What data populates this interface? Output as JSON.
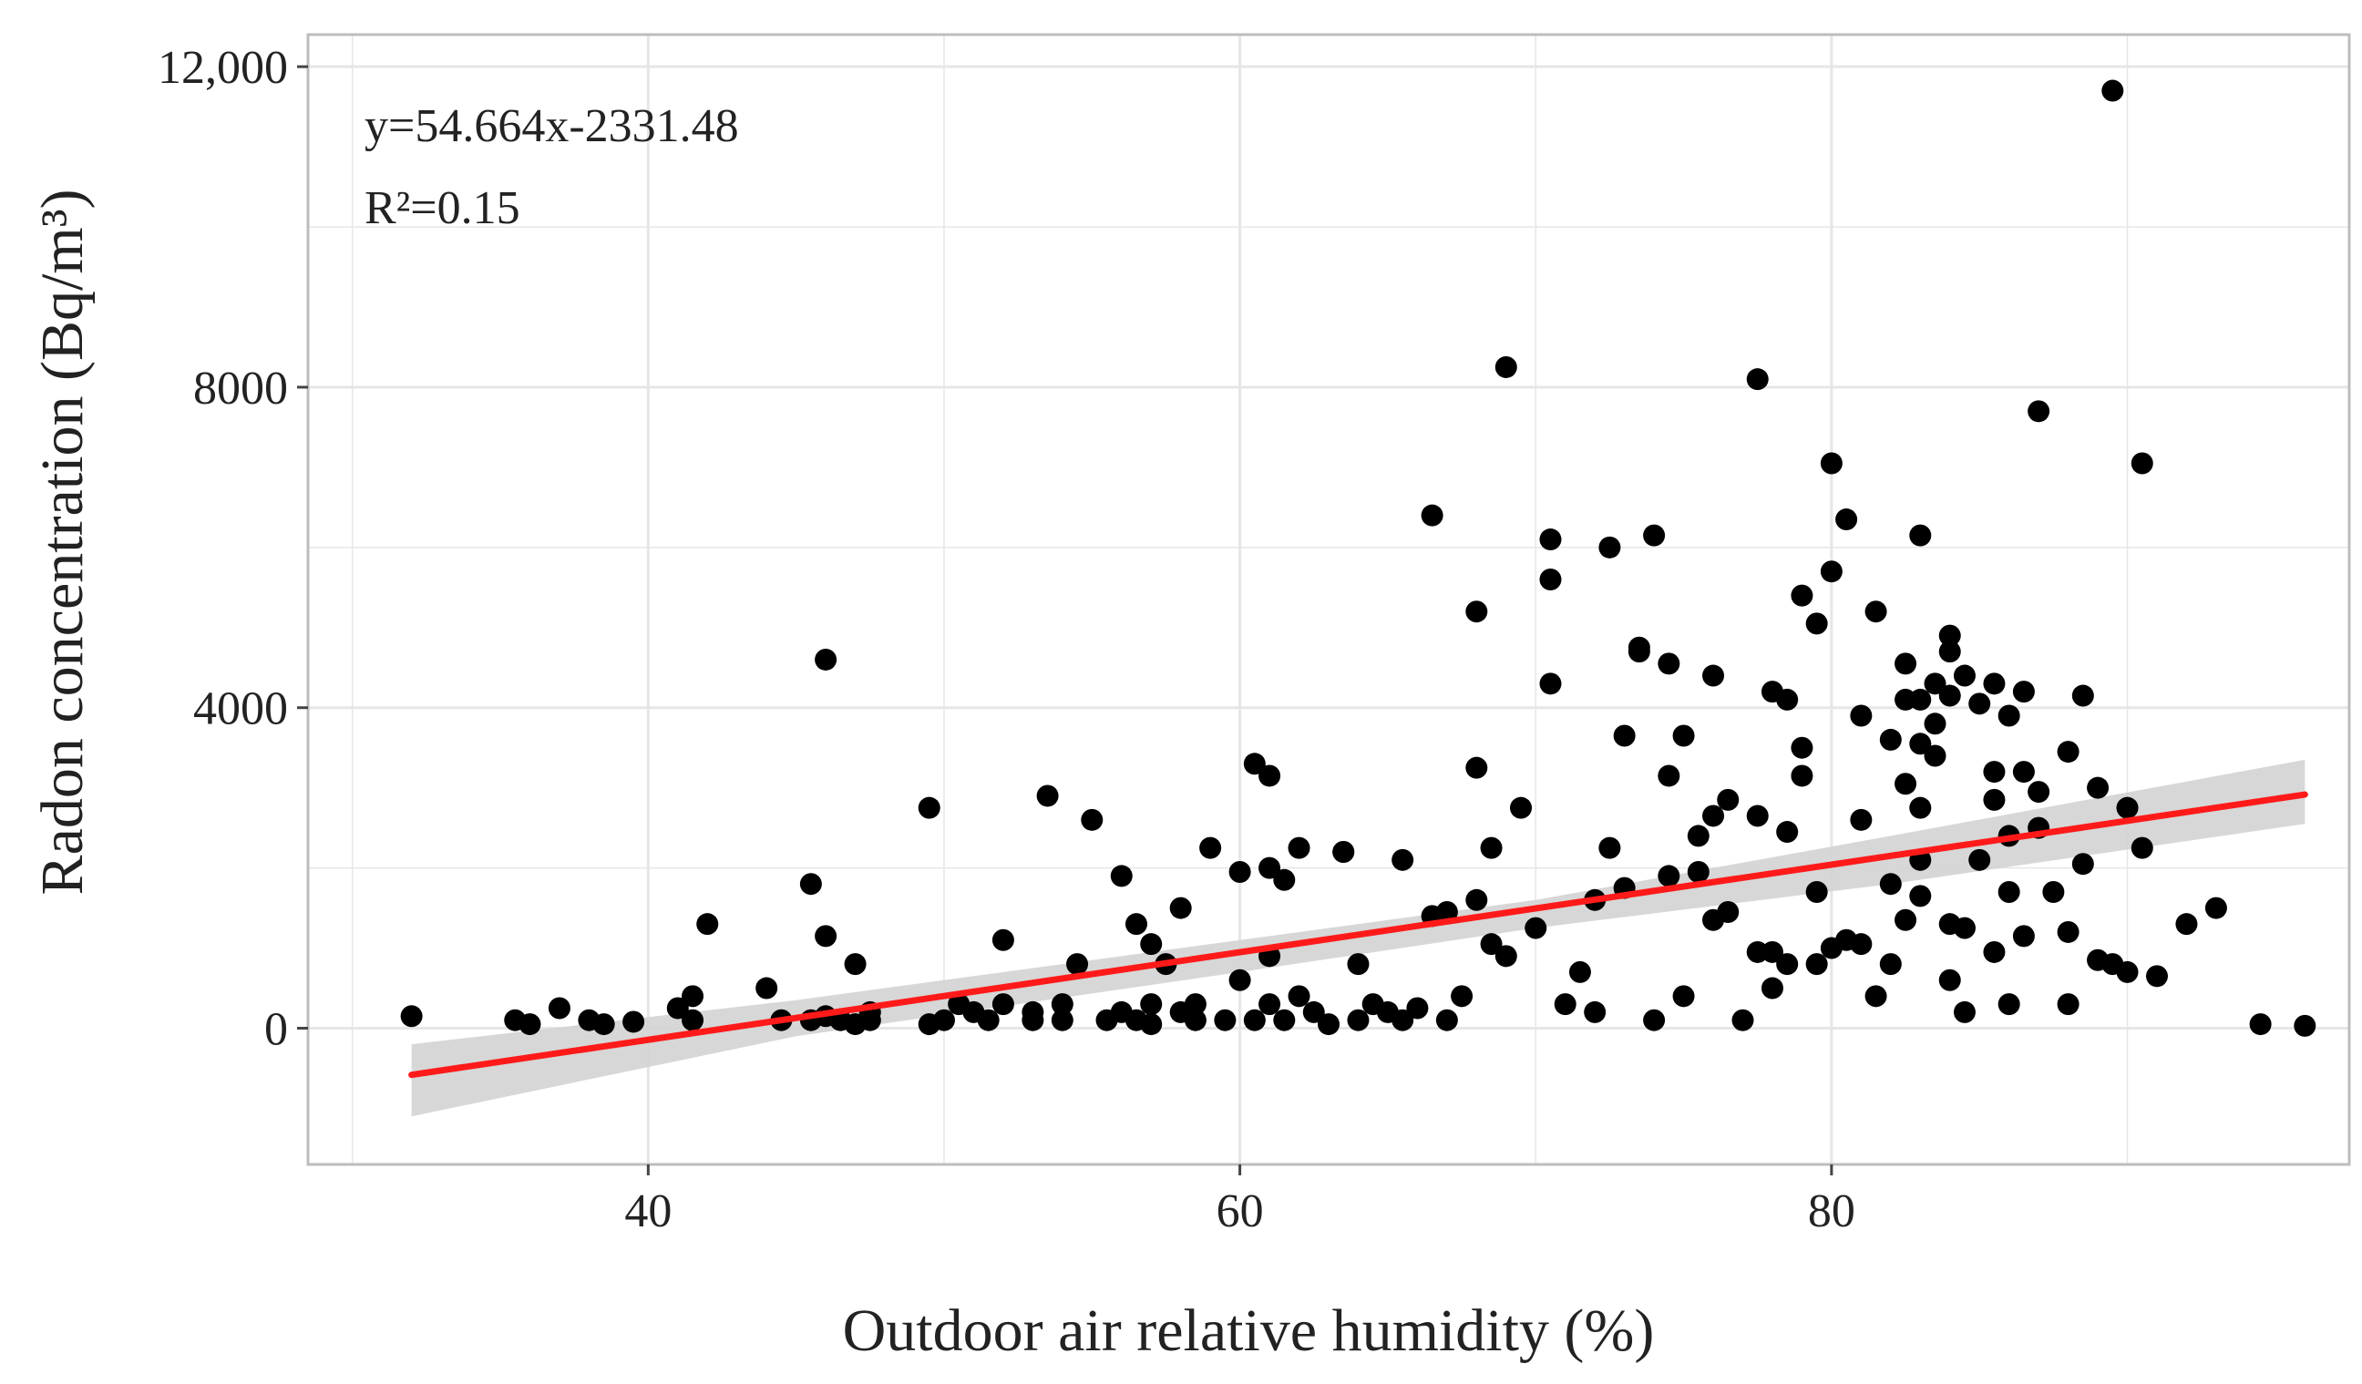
{
  "chart_data": {
    "type": "scatter",
    "xlabel": "Outdoor air relative humidity (%)",
    "ylabel": "Radon concentration (Bq/m³)",
    "xlim": [
      28.5,
      97.5
    ],
    "ylim": [
      -1700,
      12400
    ],
    "x_ticks": [
      {
        "value": 40,
        "label": "40"
      },
      {
        "value": 60,
        "label": "60"
      },
      {
        "value": 80,
        "label": "80"
      }
    ],
    "y_ticks": [
      {
        "value": 0,
        "label": "0"
      },
      {
        "value": 4000,
        "label": "4000"
      },
      {
        "value": 8000,
        "label": "8000"
      },
      {
        "value": 12000,
        "label": "12,000"
      }
    ],
    "grid": true,
    "annotations": [
      "y=54.664x-2331.48",
      "R²=0.15"
    ],
    "regression": {
      "slope": 54.664,
      "intercept": -2331.48,
      "x_range": [
        32,
        96
      ]
    },
    "confidence_band": [
      [
        32,
        -1100,
        -200
      ],
      [
        45,
        -100,
        350
      ],
      [
        60,
        700,
        1100
      ],
      [
        70,
        1250,
        1600
      ],
      [
        82,
        1800,
        2400
      ],
      [
        96,
        2550,
        3350
      ]
    ],
    "colors": {
      "points": "#000000",
      "line": "#ff1a1a",
      "band": "#d3d3d3",
      "grid": "#e6e6e6",
      "frame": "#bdbdbd"
    },
    "points": [
      [
        32,
        150
      ],
      [
        35.5,
        100
      ],
      [
        36,
        50
      ],
      [
        37,
        250
      ],
      [
        38,
        100
      ],
      [
        38.5,
        50
      ],
      [
        39.5,
        80
      ],
      [
        41,
        250
      ],
      [
        41.5,
        400
      ],
      [
        41.5,
        100
      ],
      [
        42,
        1300
      ],
      [
        44,
        500
      ],
      [
        44.5,
        100
      ],
      [
        45.5,
        100
      ],
      [
        45.5,
        1800
      ],
      [
        46,
        150
      ],
      [
        46,
        4600
      ],
      [
        46,
        1150
      ],
      [
        46.5,
        100
      ],
      [
        47,
        50
      ],
      [
        47,
        800
      ],
      [
        47.5,
        200
      ],
      [
        47.5,
        100
      ],
      [
        49.5,
        2750
      ],
      [
        49.5,
        50
      ],
      [
        50,
        100
      ],
      [
        50.5,
        300
      ],
      [
        51,
        200
      ],
      [
        51.5,
        100
      ],
      [
        52,
        1100
      ],
      [
        52,
        300
      ],
      [
        53,
        200
      ],
      [
        53,
        100
      ],
      [
        53.5,
        2900
      ],
      [
        54,
        300
      ],
      [
        54,
        100
      ],
      [
        54.5,
        800
      ],
      [
        55,
        2600
      ],
      [
        55.5,
        100
      ],
      [
        56,
        1900
      ],
      [
        56,
        200
      ],
      [
        56.5,
        1300
      ],
      [
        56.5,
        100
      ],
      [
        57,
        1050
      ],
      [
        57,
        300
      ],
      [
        57,
        50
      ],
      [
        57.5,
        800
      ],
      [
        58,
        200
      ],
      [
        58,
        1500
      ],
      [
        58.5,
        300
      ],
      [
        58.5,
        100
      ],
      [
        59,
        2250
      ],
      [
        59.5,
        100
      ],
      [
        60,
        600
      ],
      [
        60,
        1950
      ],
      [
        60.5,
        3300
      ],
      [
        60.5,
        100
      ],
      [
        61,
        3150
      ],
      [
        61,
        900
      ],
      [
        61,
        2000
      ],
      [
        61,
        300
      ],
      [
        61.5,
        1850
      ],
      [
        61.5,
        100
      ],
      [
        62,
        2250
      ],
      [
        62,
        400
      ],
      [
        62.5,
        200
      ],
      [
        63,
        50
      ],
      [
        63.5,
        2200
      ],
      [
        63.5,
        2200
      ],
      [
        64,
        800
      ],
      [
        64,
        100
      ],
      [
        64.5,
        300
      ],
      [
        65,
        200
      ],
      [
        65.5,
        2100
      ],
      [
        65.5,
        100
      ],
      [
        66,
        250
      ],
      [
        66.5,
        1400
      ],
      [
        66.5,
        6400
      ],
      [
        67,
        1450
      ],
      [
        67,
        100
      ],
      [
        67.5,
        400
      ],
      [
        68,
        5200
      ],
      [
        68,
        3250
      ],
      [
        68,
        1600
      ],
      [
        68.5,
        2250
      ],
      [
        68.5,
        1050
      ],
      [
        69,
        8250
      ],
      [
        69,
        900
      ],
      [
        69.5,
        2750
      ],
      [
        70,
        1250
      ],
      [
        70.5,
        5600
      ],
      [
        70.5,
        6100
      ],
      [
        70.5,
        4300
      ],
      [
        71,
        300
      ],
      [
        71.5,
        700
      ],
      [
        72,
        1600
      ],
      [
        72,
        200
      ],
      [
        72.5,
        6000
      ],
      [
        72.5,
        2250
      ],
      [
        73,
        3650
      ],
      [
        73,
        1750
      ],
      [
        73.5,
        4750
      ],
      [
        73.5,
        4700
      ],
      [
        74,
        6150
      ],
      [
        74,
        100
      ],
      [
        74.5,
        4550
      ],
      [
        74.5,
        1900
      ],
      [
        74.5,
        3150
      ],
      [
        75,
        3650
      ],
      [
        75,
        400
      ],
      [
        75.5,
        1950
      ],
      [
        75.5,
        2400
      ],
      [
        76,
        4400
      ],
      [
        76,
        2650
      ],
      [
        76,
        1350
      ],
      [
        76.5,
        1450
      ],
      [
        76.5,
        2850
      ],
      [
        77,
        100
      ],
      [
        77.5,
        8100
      ],
      [
        77.5,
        950
      ],
      [
        77.5,
        2650
      ],
      [
        78,
        4200
      ],
      [
        78,
        950
      ],
      [
        78,
        500
      ],
      [
        78.5,
        4100
      ],
      [
        78.5,
        2450
      ],
      [
        78.5,
        800
      ],
      [
        79,
        5400
      ],
      [
        79,
        3150
      ],
      [
        79,
        3500
      ],
      [
        79.5,
        5050
      ],
      [
        79.5,
        1700
      ],
      [
        79.5,
        800
      ],
      [
        80,
        7050
      ],
      [
        80,
        5700
      ],
      [
        80,
        1000
      ],
      [
        80.5,
        6350
      ],
      [
        80.5,
        1100
      ],
      [
        81,
        3900
      ],
      [
        81,
        2600
      ],
      [
        81,
        1050
      ],
      [
        81.5,
        5200
      ],
      [
        81.5,
        400
      ],
      [
        82,
        3600
      ],
      [
        82,
        1800
      ],
      [
        82,
        800
      ],
      [
        82.5,
        4550
      ],
      [
        82.5,
        4100
      ],
      [
        82.5,
        3050
      ],
      [
        82.5,
        1350
      ],
      [
        83,
        4100
      ],
      [
        83,
        6150
      ],
      [
        83,
        3550
      ],
      [
        83,
        2750
      ],
      [
        83,
        2100
      ],
      [
        83,
        1650
      ],
      [
        83.5,
        4300
      ],
      [
        83.5,
        3400
      ],
      [
        83.5,
        3800
      ],
      [
        84,
        4900
      ],
      [
        84,
        4700
      ],
      [
        84,
        4150
      ],
      [
        84,
        1300
      ],
      [
        84,
        600
      ],
      [
        84.5,
        4400
      ],
      [
        84.5,
        1250
      ],
      [
        84.5,
        200
      ],
      [
        85,
        4050
      ],
      [
        85,
        2100
      ],
      [
        85.5,
        4300
      ],
      [
        85.5,
        3200
      ],
      [
        85.5,
        2850
      ],
      [
        85.5,
        950
      ],
      [
        86,
        3900
      ],
      [
        86,
        2400
      ],
      [
        86,
        1700
      ],
      [
        86,
        300
      ],
      [
        86.5,
        4200
      ],
      [
        86.5,
        3200
      ],
      [
        86.5,
        1150
      ],
      [
        87,
        7700
      ],
      [
        87,
        2500
      ],
      [
        87,
        2950
      ],
      [
        87.5,
        1700
      ],
      [
        88,
        3450
      ],
      [
        88,
        1200
      ],
      [
        88,
        300
      ],
      [
        88.5,
        4150
      ],
      [
        88.5,
        2050
      ],
      [
        89,
        3000
      ],
      [
        89,
        850
      ],
      [
        89.5,
        11700
      ],
      [
        89.5,
        800
      ],
      [
        90,
        2750
      ],
      [
        90,
        700
      ],
      [
        90.5,
        7050
      ],
      [
        90.5,
        2250
      ],
      [
        91,
        650
      ],
      [
        92,
        1300
      ],
      [
        93,
        1500
      ],
      [
        94.5,
        50
      ],
      [
        96,
        30
      ]
    ]
  }
}
